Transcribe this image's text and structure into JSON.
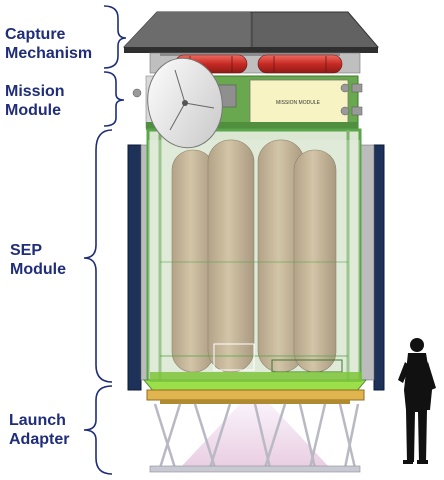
{
  "labels": {
    "capture": [
      "Capture",
      "Mechanism"
    ],
    "mission": [
      "Mission",
      "Module"
    ],
    "sep": [
      "SEP",
      "Module"
    ],
    "launch": [
      "Launch",
      "Adapter"
    ]
  },
  "panel_text": "MISSION MODULE",
  "colors": {
    "label": "#1f2d7a",
    "brace": "#1f2d7a",
    "tank": "#b8a07e",
    "green_frame": "#5aa64a",
    "red_tank": "#d2322d",
    "roof": "#5b5b5b",
    "adapter": "#d4a73a"
  }
}
